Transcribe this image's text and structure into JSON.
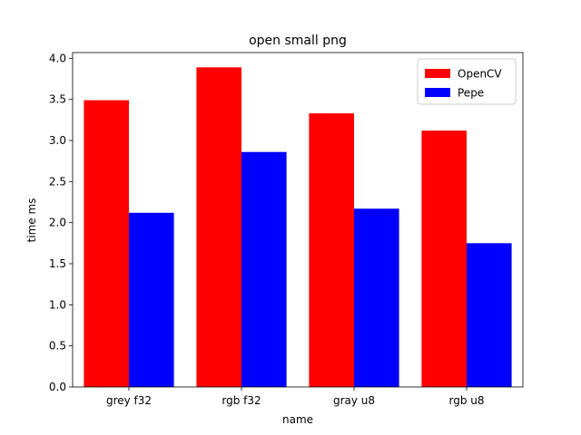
{
  "chart_data": {
    "type": "bar",
    "title": "open small png",
    "xlabel": "name",
    "ylabel": "time ms",
    "categories": [
      "grey f32",
      "rgb f32",
      "gray u8",
      "rgb u8"
    ],
    "series": [
      {
        "name": "OpenCV",
        "color": "#ff0000",
        "values": [
          3.49,
          3.89,
          3.33,
          3.12
        ]
      },
      {
        "name": "Pepe",
        "color": "#0000ff",
        "values": [
          2.12,
          2.86,
          2.17,
          1.75
        ]
      }
    ],
    "ylim": [
      0,
      4.07
    ],
    "yticks": [
      "0.0",
      "0.5",
      "1.0",
      "1.5",
      "2.0",
      "2.5",
      "3.0",
      "3.5",
      "4.0"
    ],
    "grid": false,
    "legend_position": "top-right"
  }
}
